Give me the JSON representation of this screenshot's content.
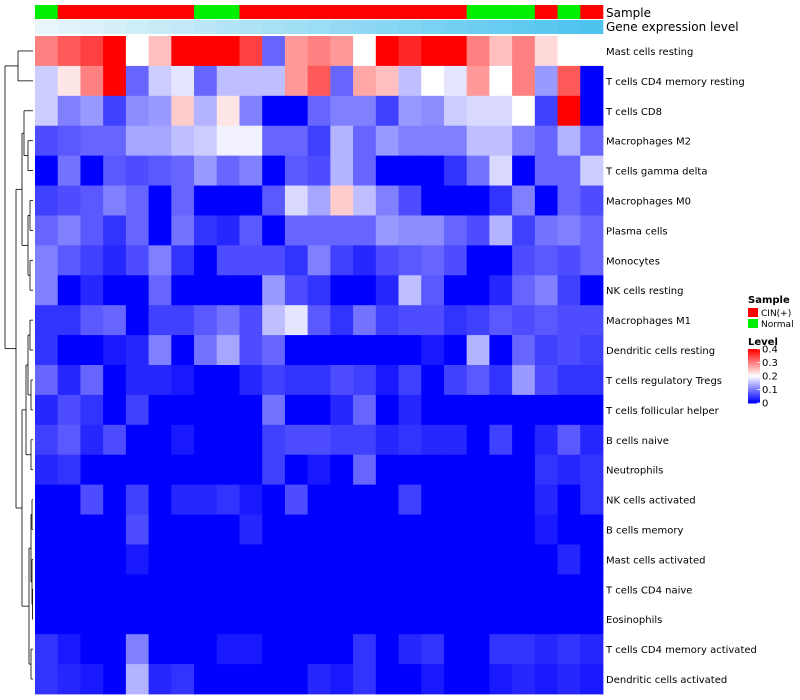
{
  "chart_data": {
    "type": "heatmap",
    "title": "",
    "annotations": {
      "sample_label": "Sample",
      "gene_label": "Gene expression level",
      "sample_groups": [
        "Normal",
        "CIN(+)",
        "CIN(+)",
        "CIN(+)",
        "CIN(+)",
        "CIN(+)",
        "CIN(+)",
        "Normal",
        "Normal",
        "CIN(+)",
        "CIN(+)",
        "CIN(+)",
        "CIN(+)",
        "CIN(+)",
        "CIN(+)",
        "CIN(+)",
        "CIN(+)",
        "CIN(+)",
        "CIN(+)",
        "Normal",
        "Normal",
        "Normal",
        "CIN(+)",
        "Normal",
        "CIN(+)"
      ],
      "gene_expression_level": [
        0.02,
        0.04,
        0.06,
        0.08,
        0.1,
        0.12,
        0.14,
        0.16,
        0.18,
        0.2,
        0.22,
        0.24,
        0.26,
        0.28,
        0.3,
        0.32,
        0.34,
        0.36,
        0.38,
        0.4,
        0.42,
        0.44,
        0.46,
        0.48,
        0.5
      ]
    },
    "rows": [
      "Mast cells resting",
      "T cells CD4 memory resting",
      "T cells CD8",
      "Macrophages M2",
      "T cells gamma delta",
      "Macrophages M0",
      "Plasma cells",
      "Monocytes",
      "NK cells resting",
      "Macrophages M1",
      "Dendritic cells resting",
      "T cells regulatory  Tregs",
      "T cells follicular helper",
      "B cells naive",
      "Neutrophils",
      "NK cells activated",
      "B cells memory",
      "Mast cells activated",
      "T cells CD4 naive",
      "Eosinophils",
      "T cells CD4 memory activated",
      "Dendritic cells activated"
    ],
    "values": [
      [
        0.3,
        0.33,
        0.35,
        0.4,
        0.2,
        0.25,
        0.4,
        0.4,
        0.4,
        0.35,
        0.08,
        0.28,
        0.3,
        0.28,
        0.2,
        0.4,
        0.37,
        0.4,
        0.4,
        0.3,
        0.25,
        0.3,
        0.23,
        0.2,
        0.2
      ],
      [
        0.16,
        0.22,
        0.3,
        0.4,
        0.08,
        0.16,
        0.18,
        0.08,
        0.15,
        0.15,
        0.15,
        0.28,
        0.33,
        0.08,
        0.27,
        0.25,
        0.15,
        0.2,
        0.18,
        0.28,
        0.2,
        0.3,
        0.12,
        0.33,
        0.0
      ],
      [
        0.16,
        0.1,
        0.12,
        0.05,
        0.11,
        0.12,
        0.24,
        0.14,
        0.22,
        0.1,
        0.0,
        0.0,
        0.08,
        0.1,
        0.1,
        0.05,
        0.12,
        0.11,
        0.16,
        0.17,
        0.17,
        0.2,
        0.05,
        0.4,
        0.0
      ],
      [
        0.06,
        0.07,
        0.08,
        0.08,
        0.13,
        0.13,
        0.15,
        0.16,
        0.19,
        0.19,
        0.08,
        0.08,
        0.05,
        0.14,
        0.08,
        0.12,
        0.1,
        0.1,
        0.1,
        0.15,
        0.15,
        0.1,
        0.08,
        0.14,
        0.08
      ],
      [
        0.0,
        0.09,
        0.0,
        0.07,
        0.06,
        0.07,
        0.08,
        0.12,
        0.08,
        0.1,
        0.0,
        0.07,
        0.06,
        0.14,
        0.08,
        0.0,
        0.0,
        0.0,
        0.04,
        0.09,
        0.17,
        0.0,
        0.08,
        0.08,
        0.16
      ],
      [
        0.05,
        0.06,
        0.07,
        0.1,
        0.08,
        0.0,
        0.08,
        0.0,
        0.0,
        0.0,
        0.07,
        0.17,
        0.13,
        0.24,
        0.15,
        0.1,
        0.06,
        0.0,
        0.0,
        0.0,
        0.04,
        0.1,
        0.0,
        0.08,
        0.06
      ],
      [
        0.08,
        0.1,
        0.07,
        0.04,
        0.08,
        0.0,
        0.09,
        0.04,
        0.03,
        0.07,
        0.0,
        0.08,
        0.08,
        0.08,
        0.08,
        0.12,
        0.11,
        0.11,
        0.08,
        0.06,
        0.14,
        0.05,
        0.09,
        0.1,
        0.08
      ],
      [
        0.1,
        0.07,
        0.05,
        0.03,
        0.06,
        0.1,
        0.04,
        0.0,
        0.06,
        0.06,
        0.06,
        0.04,
        0.1,
        0.05,
        0.03,
        0.06,
        0.07,
        0.08,
        0.06,
        0.0,
        0.0,
        0.06,
        0.07,
        0.06,
        0.08
      ],
      [
        0.1,
        0.0,
        0.03,
        0.0,
        0.0,
        0.08,
        0.0,
        0.0,
        0.0,
        0.0,
        0.12,
        0.06,
        0.04,
        0.0,
        0.0,
        0.03,
        0.15,
        0.07,
        0.0,
        0.0,
        0.03,
        0.08,
        0.1,
        0.05,
        0.0
      ],
      [
        0.04,
        0.04,
        0.07,
        0.08,
        0.0,
        0.05,
        0.05,
        0.07,
        0.09,
        0.06,
        0.15,
        0.18,
        0.07,
        0.04,
        0.09,
        0.05,
        0.06,
        0.06,
        0.04,
        0.05,
        0.07,
        0.06,
        0.07,
        0.06,
        0.06
      ],
      [
        0.04,
        0.0,
        0.0,
        0.02,
        0.03,
        0.1,
        0.0,
        0.09,
        0.13,
        0.06,
        0.08,
        0.0,
        0.0,
        0.0,
        0.0,
        0.0,
        0.0,
        0.02,
        0.0,
        0.14,
        0.0,
        0.08,
        0.05,
        0.06,
        0.05
      ],
      [
        0.08,
        0.03,
        0.08,
        0.0,
        0.03,
        0.03,
        0.02,
        0.0,
        0.0,
        0.03,
        0.05,
        0.04,
        0.04,
        0.06,
        0.05,
        0.02,
        0.05,
        0.0,
        0.05,
        0.07,
        0.04,
        0.12,
        0.06,
        0.04,
        0.04
      ],
      [
        0.03,
        0.06,
        0.04,
        0.0,
        0.05,
        0.0,
        0.0,
        0.0,
        0.0,
        0.0,
        0.09,
        0.0,
        0.0,
        0.03,
        0.08,
        0.0,
        0.03,
        0.0,
        0.0,
        0.0,
        0.0,
        0.0,
        0.0,
        0.0,
        0.0
      ],
      [
        0.05,
        0.07,
        0.03,
        0.06,
        0.0,
        0.0,
        0.02,
        0.0,
        0.0,
        0.0,
        0.05,
        0.06,
        0.06,
        0.05,
        0.05,
        0.03,
        0.04,
        0.03,
        0.03,
        0.0,
        0.05,
        0.0,
        0.03,
        0.07,
        0.03
      ],
      [
        0.03,
        0.04,
        0.0,
        0.0,
        0.0,
        0.0,
        0.0,
        0.0,
        0.0,
        0.0,
        0.05,
        0.0,
        0.02,
        0.0,
        0.08,
        0.0,
        0.0,
        0.0,
        0.0,
        0.0,
        0.0,
        0.0,
        0.04,
        0.03,
        0.04
      ],
      [
        0.0,
        0.0,
        0.06,
        0.0,
        0.05,
        0.0,
        0.03,
        0.03,
        0.04,
        0.02,
        0.0,
        0.06,
        0.0,
        0.0,
        0.0,
        0.0,
        0.05,
        0.0,
        0.0,
        0.0,
        0.0,
        0.0,
        0.03,
        0.0,
        0.04
      ],
      [
        0.0,
        0.0,
        0.0,
        0.0,
        0.06,
        0.0,
        0.0,
        0.0,
        0.0,
        0.03,
        0.0,
        0.0,
        0.0,
        0.0,
        0.0,
        0.0,
        0.0,
        0.0,
        0.0,
        0.0,
        0.0,
        0.0,
        0.02,
        0.0,
        0.0
      ],
      [
        0.0,
        0.0,
        0.0,
        0.0,
        0.02,
        0.0,
        0.0,
        0.0,
        0.0,
        0.0,
        0.0,
        0.0,
        0.0,
        0.0,
        0.0,
        0.0,
        0.0,
        0.0,
        0.0,
        0.0,
        0.0,
        0.0,
        0.0,
        0.03,
        0.0
      ],
      [
        0.0,
        0.0,
        0.0,
        0.0,
        0.0,
        0.0,
        0.0,
        0.0,
        0.0,
        0.0,
        0.0,
        0.0,
        0.0,
        0.0,
        0.0,
        0.0,
        0.0,
        0.0,
        0.0,
        0.0,
        0.0,
        0.0,
        0.0,
        0.0,
        0.0
      ],
      [
        0.0,
        0.0,
        0.0,
        0.0,
        0.0,
        0.0,
        0.0,
        0.0,
        0.0,
        0.0,
        0.0,
        0.0,
        0.0,
        0.0,
        0.0,
        0.0,
        0.0,
        0.0,
        0.0,
        0.0,
        0.0,
        0.0,
        0.0,
        0.0,
        0.0
      ],
      [
        0.04,
        0.02,
        0.0,
        0.0,
        0.1,
        0.0,
        0.0,
        0.0,
        0.02,
        0.02,
        0.0,
        0.0,
        0.0,
        0.0,
        0.04,
        0.0,
        0.03,
        0.04,
        0.0,
        0.0,
        0.04,
        0.04,
        0.03,
        0.04,
        0.03
      ],
      [
        0.04,
        0.03,
        0.02,
        0.0,
        0.14,
        0.03,
        0.04,
        0.0,
        0.0,
        0.0,
        0.0,
        0.0,
        0.03,
        0.02,
        0.04,
        0.0,
        0.0,
        0.02,
        0.0,
        0.0,
        0.02,
        0.03,
        0.02,
        0.03,
        0.02
      ]
    ],
    "legend": {
      "sample_title": "Sample",
      "sample_items": [
        {
          "label": "CIN(+)",
          "color": "#ff0000"
        },
        {
          "label": "Normal",
          "color": "#00ee00"
        }
      ],
      "level_title": "Level",
      "level_ticks": [
        0.4,
        0.3,
        0.2,
        0.1,
        0
      ],
      "placement": "right"
    },
    "colorscale": {
      "low": "#0000ff",
      "mid": "#ffffff",
      "high": "#ff0000",
      "range": [
        0,
        0.4
      ]
    },
    "gene_bar_colors": {
      "low": "#e8f6fb",
      "high": "#4dc3ee"
    }
  }
}
